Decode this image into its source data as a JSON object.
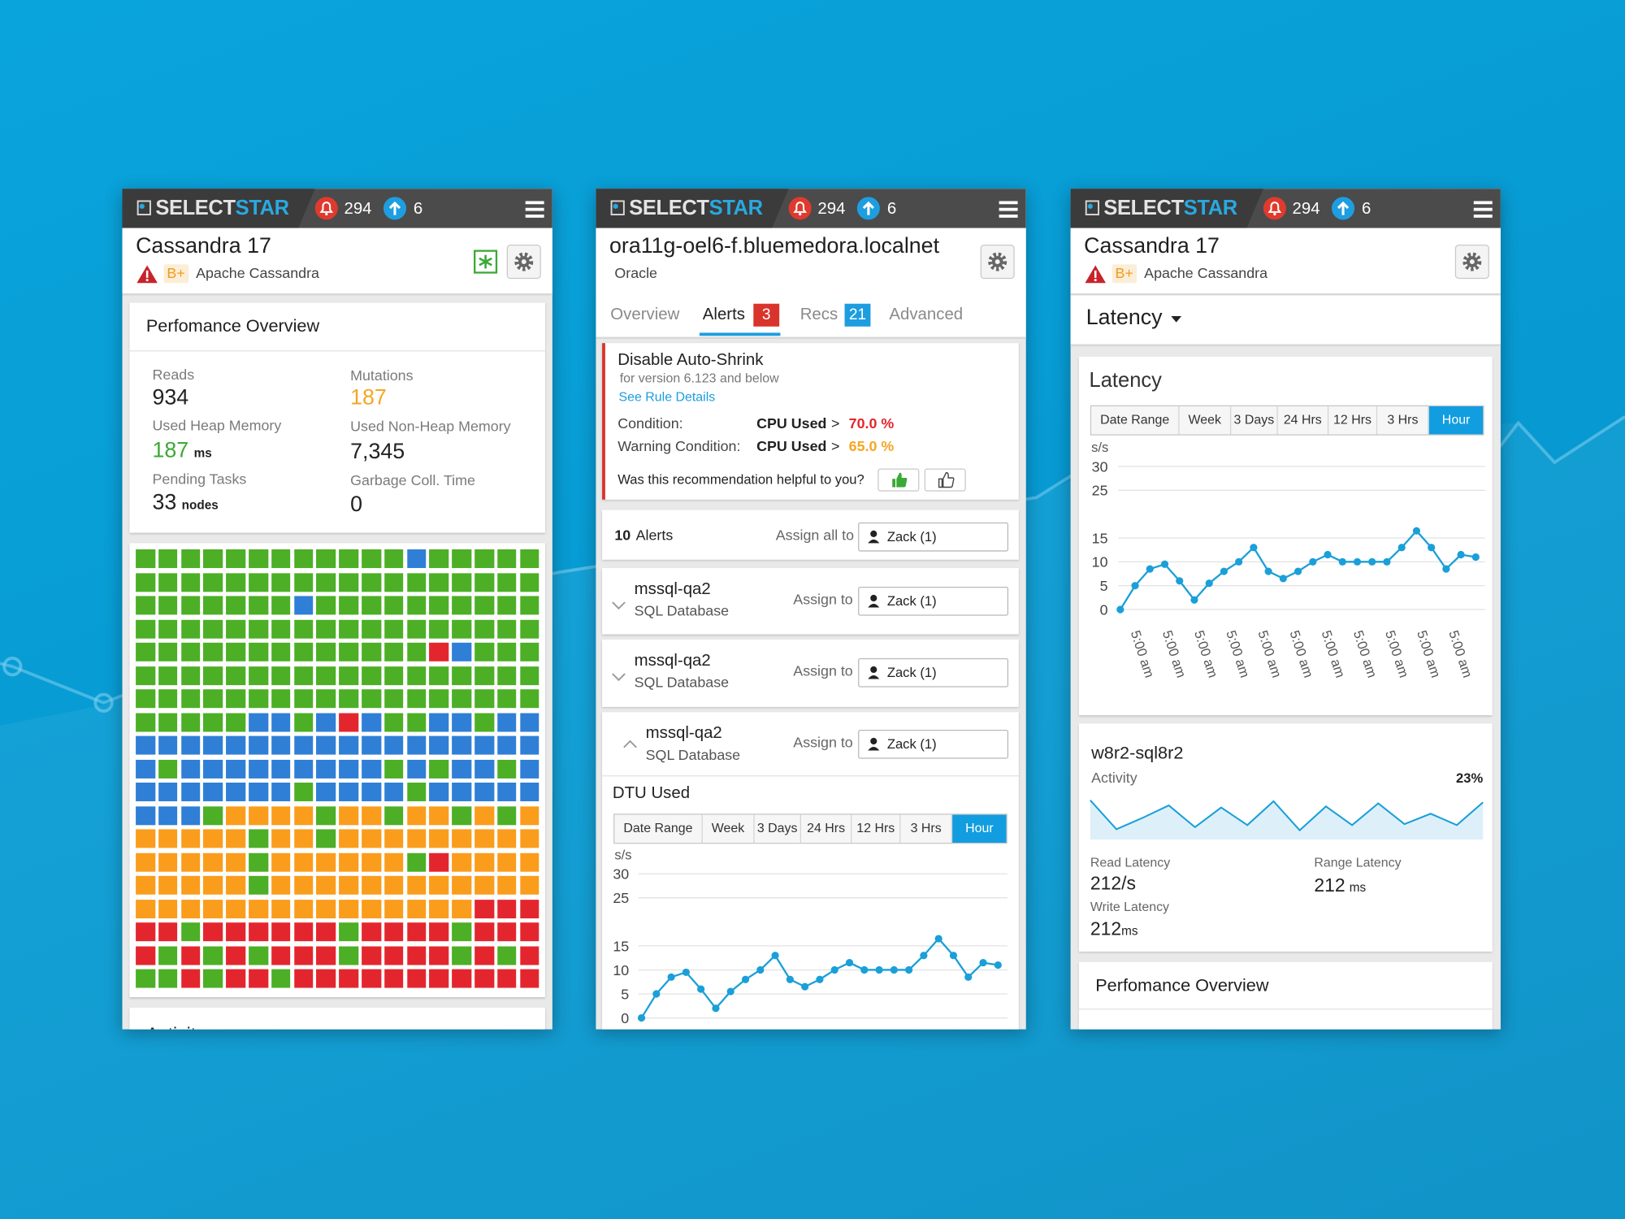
{
  "header": {
    "logo_a": "SELECT",
    "logo_b": "STAR",
    "alerts": "294",
    "updates": "6"
  },
  "phone1": {
    "title": "Cassandra 17",
    "grade": "B+",
    "subtitle": "Apache Cassandra",
    "card_title": "Perfomance Overview",
    "metrics": [
      {
        "label": "Reads",
        "value": "934"
      },
      {
        "label": "Mutations",
        "value": "187"
      },
      {
        "label": "Used Heap Memory",
        "value": "187",
        "unit": "ms"
      },
      {
        "label": "Used Non-Heap Memory",
        "value": "7,345"
      },
      {
        "label": "Pending Tasks",
        "value": "33",
        "unit": "nodes"
      },
      {
        "label": "Garbage Coll. Time",
        "value": "0"
      }
    ],
    "heatmap": {
      "colors": {
        "g": "#4caf26",
        "b": "#2f7fd6",
        "o": "#fa9d1c",
        "r": "#e3262e"
      },
      "rows": [
        "ggggggggggggbggggg",
        "gggggggggggggggggg",
        "gggggggbgggggggggg",
        "gggggggggggggggggg",
        "gggggggggggggrbggg",
        "gggggggggggggggggg",
        "gggggggggggggggggg",
        "gggggbbgbrbggbbgbb",
        "bbbbbbbbbbbbbbbbbb",
        "bgbbbbbbbbbgbgbbgb",
        "bbbbbbbgbbbbgbbbbb",
        "bbbgoooogoogoogogo",
        "ooooogoogooooooooo",
        "ooooogoooooogroooo",
        "ooooogoooooooooooo",
        "ooooooooooooooorrr",
        "rrgrrrrrrgrrrrgrrr",
        "rgrgrgrrrgrrrrgrgr",
        "ggrgrrgrrrrrrrrrrr"
      ]
    },
    "next_card": "Activity"
  },
  "phone2": {
    "title": "ora11g-oel6-f.bluemedora.localnet",
    "subtitle": "Oracle",
    "tabs": [
      {
        "label": "Overview"
      },
      {
        "label": "Alerts",
        "badge": "3"
      },
      {
        "label": "Recs",
        "badge": "21"
      },
      {
        "label": "Advanced"
      }
    ],
    "rec": {
      "title": "Disable Auto-Shrink",
      "note": "for version 6.123 and below",
      "link": "See Rule Details",
      "conditions": [
        {
          "label": "Condition:",
          "metric": "CPU Used",
          "op": ">",
          "value": "70.0 %"
        },
        {
          "label": "Warning Condition:",
          "metric": "CPU Used",
          "op": ">",
          "value": "65.0 %"
        }
      ],
      "question": "Was this recommendation helpful to you?"
    },
    "alerts": {
      "count": "10",
      "label": "Alerts",
      "assign_all": "Assign all to",
      "assignee": "Zack (1)",
      "items": [
        {
          "name": "mssql-qa2",
          "type": "SQL Database",
          "assign": "Assign to",
          "assignee": "Zack (1)"
        },
        {
          "name": "mssql-qa2",
          "type": "SQL Database",
          "assign": "Assign to",
          "assignee": "Zack (1)"
        },
        {
          "name": "mssql-qa2",
          "type": "SQL Database",
          "assign": "Assign to",
          "assignee": "Zack (1)"
        }
      ]
    },
    "dtu_chart": {
      "type": "line",
      "title": "DTU Used",
      "ranges": [
        "Date Range",
        "Week",
        "3 Days",
        "24 Hrs",
        "12 Hrs",
        "3 Hrs",
        "Hour"
      ],
      "y_unit": "s/s",
      "ylim": [
        0,
        30
      ],
      "yticks": [
        0,
        5,
        10,
        15,
        25,
        30
      ],
      "grid": true,
      "color": "#1a9fd9",
      "values": [
        0,
        5,
        8.5,
        9.5,
        6,
        2,
        5.5,
        8,
        10,
        13,
        8,
        6.5,
        8,
        10,
        11.5,
        10,
        10,
        10,
        10,
        13,
        16.5,
        13,
        8.5,
        11.5,
        11
      ]
    }
  },
  "phone3": {
    "title": "Cassandra 17",
    "grade": "B+",
    "subtitle": "Apache Cassandra",
    "view": "Latency",
    "latency_chart": {
      "type": "line",
      "title": "Latency",
      "ranges": [
        "Date Range",
        "Week",
        "3 Days",
        "24 Hrs",
        "12 Hrs",
        "3 Hrs",
        "Hour"
      ],
      "y_unit": "s/s",
      "ylim": [
        0,
        30
      ],
      "yticks": [
        0,
        5,
        10,
        15,
        25,
        30
      ],
      "grid": true,
      "color": "#1a9fd9",
      "xlabels": [
        "5:00 am",
        "5:00 am",
        "5:00 am",
        "5:00 am",
        "5:00 am",
        "5:00 am",
        "5:00 am",
        "5:00 am",
        "5:00 am",
        "5:00 am",
        "5:00 am"
      ],
      "values": [
        0,
        5,
        8.5,
        9.5,
        6,
        2,
        5.5,
        8,
        10,
        13,
        8,
        6.5,
        8,
        10,
        11.5,
        10,
        10,
        10,
        10,
        13,
        16.5,
        13,
        8.5,
        11.5,
        11
      ]
    },
    "host": {
      "name": "w8r2-sql8r2",
      "activity": {
        "type": "area",
        "label": "Activity",
        "percent": "23%",
        "ylim": [
          0,
          30
        ],
        "color": "#1a9fd9",
        "values": [
          30,
          2,
          13,
          25,
          4,
          23,
          6,
          29,
          1,
          24,
          6,
          27,
          7,
          17,
          6,
          28
        ]
      },
      "stats": [
        {
          "label": "Read Latency",
          "value": "212/s"
        },
        {
          "label": "Range Latency",
          "value": "212",
          "unit": "ms"
        },
        {
          "label": "Write Latency",
          "value": "212",
          "unit": "ms"
        }
      ]
    },
    "next_card": "Perfomance Overview"
  }
}
